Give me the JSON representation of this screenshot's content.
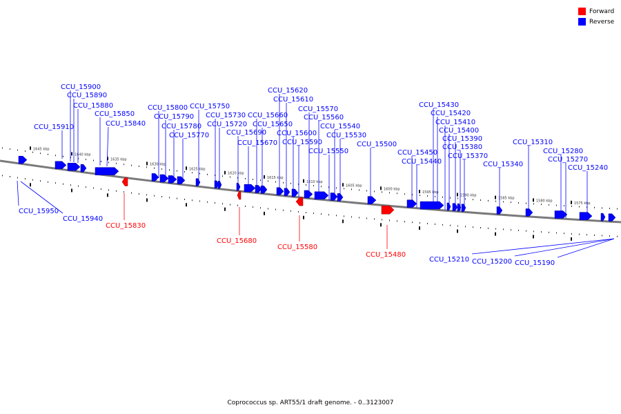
{
  "legend": {
    "forward": {
      "label": "Forward",
      "color": "#ff0000"
    },
    "reverse": {
      "label": "Reverse",
      "color": "#0000ff"
    }
  },
  "caption": "Coprococcus sp. ART55/1 draft genome. - 0..3123007",
  "scale_labels": [
    "1645 kbp",
    "1640 kbp",
    "1635 kbp",
    "1630 kbp",
    "1625 kbp",
    "1620 kbp",
    "1615 kbp",
    "1610 kbp",
    "1605 kbp",
    "1600 kbp",
    "1595 kbp",
    "1590 kbp",
    "1585 kbp",
    "1580 kbp",
    "1575 kbp"
  ],
  "genes": {
    "reverse": [
      "CCU_15910",
      "CCU_15900",
      "CCU_15890",
      "CCU_15880",
      "CCU_15850",
      "CCU_15840",
      "CCU_15800",
      "CCU_15790",
      "CCU_15780",
      "CCU_15770",
      "CCU_15750",
      "CCU_15730",
      "CCU_15720",
      "CCU_15690",
      "CCU_15670",
      "CCU_15660",
      "CCU_15650",
      "CCU_15620",
      "CCU_15610",
      "CCU_15600",
      "CCU_15590",
      "CCU_15570",
      "CCU_15560",
      "CCU_15550",
      "CCU_15540",
      "CCU_15530",
      "CCU_15500",
      "CCU_15450",
      "CCU_15440",
      "CCU_15430",
      "CCU_15420",
      "CCU_15410",
      "CCU_15400",
      "CCU_15390",
      "CCU_15380",
      "CCU_15370",
      "CCU_15340",
      "CCU_15310",
      "CCU_15280",
      "CCU_15270",
      "CCU_15240",
      "CCU_15950",
      "CCU_15940",
      "CCU_15210",
      "CCU_15200",
      "CCU_15190"
    ],
    "forward": [
      "CCU_15830",
      "CCU_15680",
      "CCU_15580",
      "CCU_15480"
    ]
  }
}
